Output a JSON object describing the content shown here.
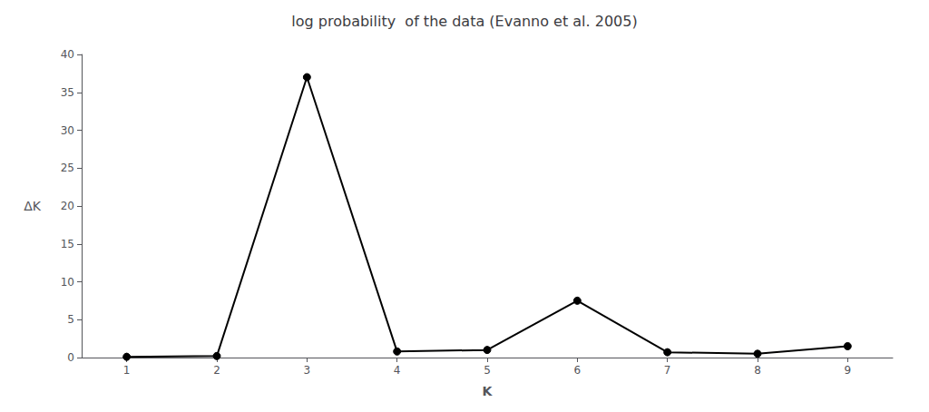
{
  "chart_data": {
    "type": "line",
    "title": "log probability  of the data (Evanno et al. 2005)",
    "xlabel": "K",
    "ylabel": "ΔK",
    "x": [
      1,
      2,
      3,
      4,
      5,
      6,
      7,
      8,
      9
    ],
    "values": [
      0.1,
      0.2,
      37.0,
      0.8,
      1.0,
      7.5,
      0.7,
      0.5,
      1.5
    ],
    "color": "#000000",
    "marker": "circle",
    "xlim": [
      0.5,
      9.5
    ],
    "xticks": [
      1,
      2,
      3,
      4,
      5,
      6,
      7,
      8,
      9
    ],
    "ylim": [
      0,
      40
    ],
    "yticks": [
      0,
      5,
      10,
      15,
      20,
      25,
      30,
      35,
      40
    ],
    "grid": false
  }
}
